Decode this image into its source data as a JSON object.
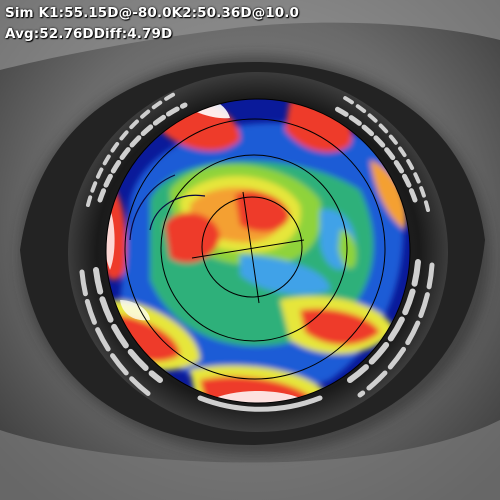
{
  "readout": {
    "line1": {
      "sim_k1_label": "Sim K1:",
      "sim_k1_value": "55.15D",
      "sim_k1_axis": "@-80.0",
      "k2_label": "K2:",
      "k2_value": "50.36D",
      "k2_axis": "@10.0"
    },
    "line2": {
      "avg_label": "Avg:",
      "avg_value": "52.76D",
      "diff_label": "Diff:",
      "diff_value": "4.79D"
    }
  },
  "map": {
    "k1_axis_deg": -80.0,
    "k2_axis_deg": 10.0,
    "rings": 4,
    "palette": [
      "#0a1a9a",
      "#1f5cd6",
      "#3fa2e8",
      "#2fb07a",
      "#8fd33a",
      "#e6e63a",
      "#f4a030",
      "#ee3a2a",
      "#b01010",
      "#ffffff"
    ]
  }
}
